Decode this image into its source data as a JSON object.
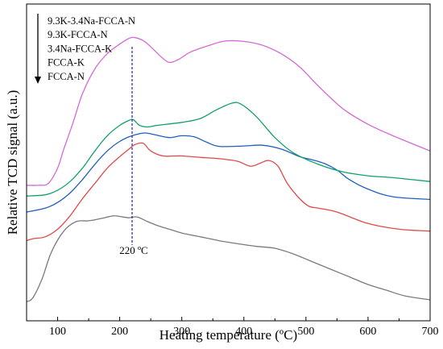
{
  "chart_data": {
    "type": "line",
    "xlabel": "Heating temperature (ºC)",
    "ylabel": "Relative TCD signal (a.u.)",
    "xlim": [
      50,
      700
    ],
    "xticks": [
      100,
      200,
      300,
      400,
      500,
      600,
      700
    ],
    "y_ticks_shown": false,
    "grid": false,
    "legend": {
      "placement": "top-left",
      "order_arrow": "down",
      "entries": [
        "9.3K-3.4Na-FCCA-N",
        "9.3K-FCCA-N",
        "3.4Na-FCCA-K",
        "FCCA-K",
        "FCCA-N"
      ]
    },
    "reference_line": {
      "x": 220,
      "style": "dashed",
      "color": "#2222aa"
    },
    "annotation": "220 ºC",
    "series": [
      {
        "name": "9.3K-3.4Na-FCCA-N",
        "color": "#d46ad4",
        "x": [
          50,
          70,
          85,
          100,
          110,
          125,
          140,
          160,
          180,
          200,
          215,
          225,
          240,
          255,
          268,
          280,
          295,
          315,
          345,
          370,
          400,
          430,
          460,
          490,
          520,
          560,
          600,
          640,
          700
        ],
        "y": [
          6.15,
          6.15,
          6.2,
          6.6,
          7.1,
          7.8,
          8.55,
          9.2,
          9.6,
          9.85,
          10.0,
          10.02,
          9.92,
          9.7,
          9.5,
          9.37,
          9.45,
          9.65,
          9.82,
          9.93,
          9.92,
          9.82,
          9.6,
          9.25,
          8.75,
          8.15,
          7.75,
          7.45,
          7.05
        ]
      },
      {
        "name": "9.3K-FCCA-N",
        "color": "#12a06a",
        "x": [
          50,
          80,
          100,
          120,
          140,
          160,
          180,
          200,
          215,
          222,
          232,
          245,
          260,
          300,
          330,
          355,
          380,
          395,
          420,
          450,
          480,
          520,
          560,
          600,
          640,
          700
        ],
        "y": [
          5.87,
          5.9,
          6.02,
          6.25,
          6.6,
          7.05,
          7.45,
          7.72,
          7.85,
          7.87,
          7.72,
          7.68,
          7.72,
          7.8,
          7.9,
          8.12,
          8.3,
          8.28,
          7.95,
          7.4,
          7.0,
          6.7,
          6.5,
          6.4,
          6.35,
          6.25
        ]
      },
      {
        "name": "3.4Na-FCCA-K",
        "color": "#1f5fbf",
        "x": [
          50,
          80,
          100,
          120,
          140,
          160,
          180,
          200,
          220,
          240,
          255,
          280,
          300,
          320,
          340,
          360,
          400,
          430,
          460,
          490,
          510,
          530,
          550,
          570,
          600,
          640,
          700
        ],
        "y": [
          5.45,
          5.55,
          5.7,
          5.95,
          6.3,
          6.7,
          7.05,
          7.3,
          7.45,
          7.52,
          7.48,
          7.4,
          7.45,
          7.42,
          7.28,
          7.17,
          7.18,
          7.2,
          7.1,
          6.9,
          6.82,
          6.72,
          6.55,
          6.3,
          6.05,
          5.85,
          5.78
        ]
      },
      {
        "name": "FCCA-K",
        "color": "#e04a4a",
        "x": [
          50,
          60,
          80,
          100,
          120,
          140,
          160,
          180,
          200,
          215,
          225,
          238,
          250,
          270,
          300,
          330,
          360,
          390,
          410,
          425,
          440,
          455,
          470,
          490,
          505,
          520,
          550,
          600,
          650,
          700
        ],
        "y": [
          4.7,
          4.75,
          4.8,
          5.0,
          5.35,
          5.8,
          6.2,
          6.6,
          6.9,
          7.1,
          7.22,
          7.25,
          7.05,
          6.92,
          6.92,
          6.88,
          6.85,
          6.78,
          6.65,
          6.72,
          6.8,
          6.65,
          6.2,
          5.8,
          5.6,
          5.55,
          5.45,
          5.15,
          5.0,
          4.95
        ]
      },
      {
        "name": "FCCA-N",
        "color": "#7a7a7a",
        "x": [
          50,
          60,
          75,
          90,
          110,
          130,
          150,
          170,
          190,
          205,
          215,
          228,
          245,
          260,
          280,
          300,
          330,
          360,
          390,
          420,
          450,
          480,
          510,
          540,
          570,
          600,
          630,
          660,
          700
        ],
        "y": [
          3.1,
          3.2,
          3.7,
          4.4,
          4.95,
          5.2,
          5.22,
          5.28,
          5.35,
          5.32,
          5.3,
          5.32,
          5.2,
          5.1,
          5.0,
          4.9,
          4.8,
          4.7,
          4.62,
          4.55,
          4.5,
          4.35,
          4.15,
          3.95,
          3.75,
          3.55,
          3.4,
          3.25,
          3.15
        ]
      }
    ]
  }
}
